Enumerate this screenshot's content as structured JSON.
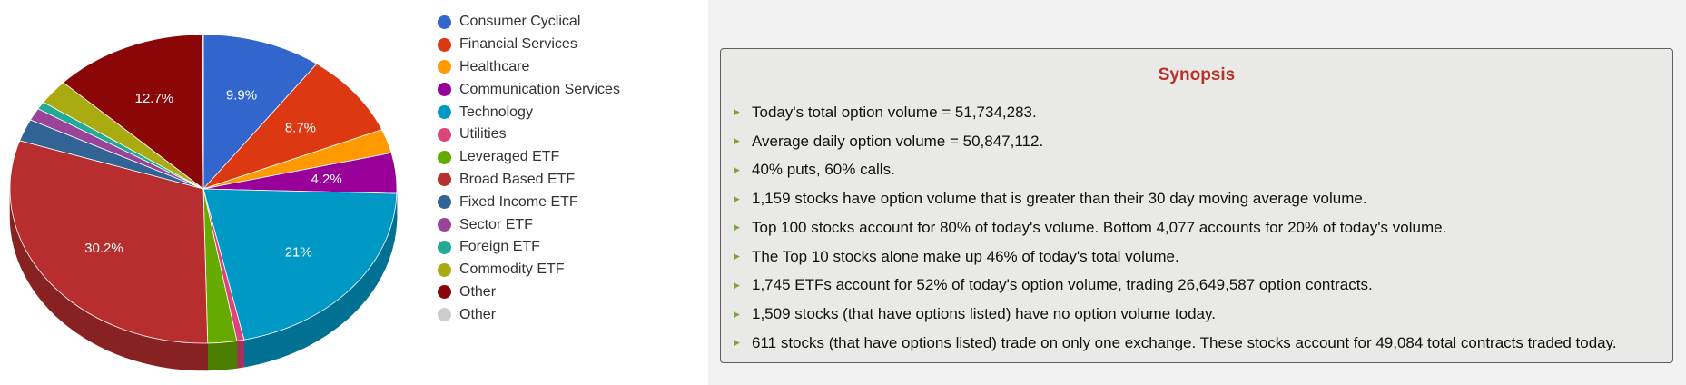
{
  "chart_data": {
    "type": "pie",
    "slices": [
      {
        "label": "Consumer Cyclical",
        "value": 9.9,
        "color": "#3366cc",
        "data_label": "9.9%"
      },
      {
        "label": "Financial Services",
        "value": 8.7,
        "color": "#dc3912",
        "data_label": "8.7%"
      },
      {
        "label": "Healthcare",
        "value": 2.5,
        "color": "#ff9900",
        "data_label": ""
      },
      {
        "label": "Communication Services",
        "value": 4.2,
        "color": "#990099",
        "data_label": "4.2%"
      },
      {
        "label": "Technology",
        "value": 21.0,
        "color": "#0099c6",
        "data_label": "21%"
      },
      {
        "label": "Utilities",
        "value": 0.6,
        "color": "#dd4477",
        "data_label": ""
      },
      {
        "label": "Leveraged ETF",
        "value": 2.4,
        "color": "#66aa00",
        "data_label": ""
      },
      {
        "label": "Broad Based ETF",
        "value": 30.2,
        "color": "#b82e2e",
        "data_label": "30.2%"
      },
      {
        "label": "Fixed Income ETF",
        "value": 2.3,
        "color": "#316395",
        "data_label": ""
      },
      {
        "label": "Sector ETF",
        "value": 1.3,
        "color": "#994499",
        "data_label": ""
      },
      {
        "label": "Foreign ETF",
        "value": 0.8,
        "color": "#22aa99",
        "data_label": ""
      },
      {
        "label": "Commodity ETF",
        "value": 2.6,
        "color": "#aaaa11",
        "data_label": ""
      },
      {
        "label": "Other",
        "value": 12.7,
        "color": "#8b0707",
        "data_label": "12.7%"
      },
      {
        "label": "Other",
        "value": 0.1,
        "color": "#cccccc",
        "data_label": ""
      }
    ],
    "legend_position": "right",
    "three_d": true
  },
  "synopsis": {
    "title": "Synopsis",
    "bullet": "▶",
    "items": [
      "Today's total option volume = 51,734,283.",
      "Average daily option volume = 50,847,112.",
      "40% puts, 60% calls.",
      "1,159 stocks have option volume that is greater than their 30 day moving average volume.",
      "Top 100 stocks account for 80% of today's volume. Bottom 4,077 accounts for 20% of today's volume.",
      "The Top 10 stocks alone make up 46% of today's total volume.",
      "1,745 ETFs account for 52% of today's option volume, trading 26,649,587 option contracts.",
      "1,509 stocks (that have options listed) have no option volume today.",
      "611 stocks (that have options listed) trade on only one exchange. These stocks account for 49,084 total contracts traded today."
    ]
  }
}
